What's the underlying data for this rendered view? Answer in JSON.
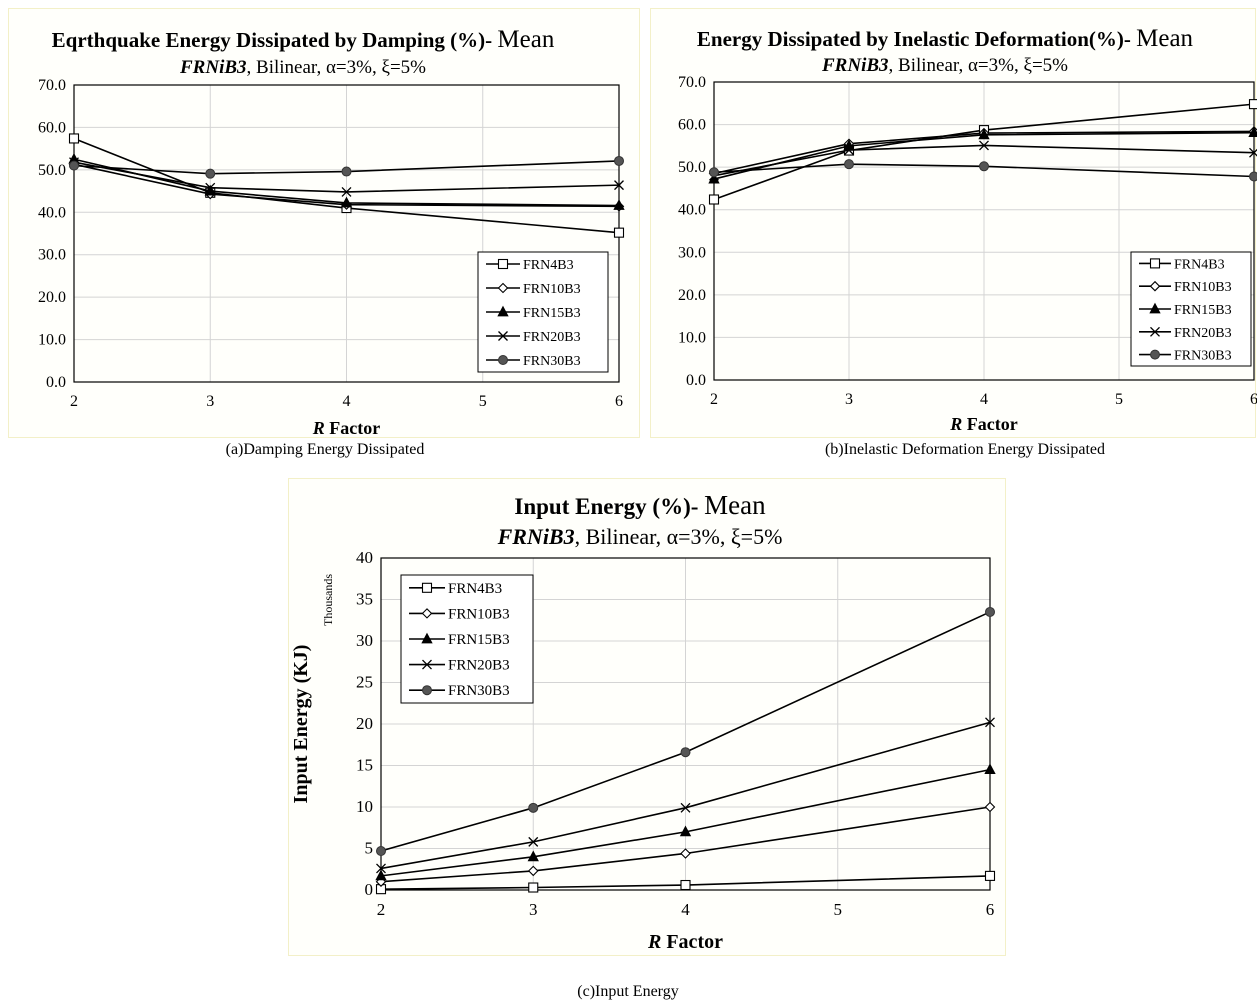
{
  "series_names": [
    "FRN4B3",
    "FRN10B3",
    "FRN15B3",
    "FRN20B3",
    "FRN30B3"
  ],
  "captions": {
    "a": "(a)Damping Energy Dissipated",
    "b": "(b)Inelastic Deformation Energy Dissipated",
    "c": "(c)Input Energy"
  },
  "chart_data": [
    {
      "type": "line",
      "title": "Eqrthquake Energy Dissipated by Damping (%)- Mean",
      "subtitle": "FRNiB3, Bilinear, α=3%, ξ=5%",
      "xlabel": "R Factor",
      "ylabel": "",
      "x_ticks": [
        "2",
        "3",
        "4",
        "5",
        "6"
      ],
      "y_ticks": [
        "0.0",
        "10.0",
        "20.0",
        "30.0",
        "40.0",
        "50.0",
        "60.0",
        "70.0"
      ],
      "xlim": [
        2,
        6
      ],
      "ylim": [
        0,
        70
      ],
      "x": [
        2,
        3,
        4,
        6
      ],
      "series": [
        {
          "name": "FRN4B3",
          "marker": "square",
          "values": [
            57.4,
            44.6,
            41.0,
            35.2
          ]
        },
        {
          "name": "FRN10B3",
          "marker": "diamond",
          "values": [
            51.3,
            44.3,
            41.8,
            41.4
          ]
        },
        {
          "name": "FRN15B3",
          "marker": "triangle",
          "values": [
            52.5,
            45.0,
            42.2,
            41.6
          ]
        },
        {
          "name": "FRN20B3",
          "marker": "x",
          "values": [
            51.8,
            45.8,
            44.8,
            46.4
          ]
        },
        {
          "name": "FRN30B3",
          "marker": "circle",
          "values": [
            51.0,
            49.1,
            49.6,
            52.1
          ]
        }
      ],
      "legend_position": "bottom-right",
      "grid": true
    },
    {
      "type": "line",
      "title": "Energy Dissipated by Inelastic Deformation(%)- Mean",
      "subtitle": "FRNiB3, Bilinear, α=3%, ξ=5%",
      "xlabel": "R Factor",
      "ylabel": "",
      "x_ticks": [
        "2",
        "3",
        "4",
        "5",
        "6"
      ],
      "y_ticks": [
        "0.0",
        "10.0",
        "20.0",
        "30.0",
        "40.0",
        "50.0",
        "60.0",
        "70.0"
      ],
      "xlim": [
        2,
        6
      ],
      "ylim": [
        0,
        70
      ],
      "x": [
        2,
        3,
        4,
        6
      ],
      "series": [
        {
          "name": "FRN4B3",
          "marker": "square",
          "values": [
            42.4,
            53.9,
            58.7,
            64.8
          ]
        },
        {
          "name": "FRN10B3",
          "marker": "diamond",
          "values": [
            48.5,
            55.5,
            58.0,
            58.4
          ]
        },
        {
          "name": "FRN15B3",
          "marker": "triangle",
          "values": [
            47.2,
            55.0,
            57.6,
            58.1
          ]
        },
        {
          "name": "FRN20B3",
          "marker": "x",
          "values": [
            48.0,
            54.0,
            55.1,
            53.4
          ]
        },
        {
          "name": "FRN30B3",
          "marker": "circle",
          "values": [
            48.8,
            50.7,
            50.2,
            47.8
          ]
        }
      ],
      "legend_position": "bottom-right",
      "grid": true
    },
    {
      "type": "line",
      "title": "Input Energy (%)- Mean",
      "subtitle": "FRNiB3, Bilinear, α=3%, ξ=5%",
      "xlabel": "R Factor",
      "ylabel": "Input Energy (KJ)",
      "y_unit_label": "Thousands",
      "x_ticks": [
        "2",
        "3",
        "4",
        "5",
        "6"
      ],
      "y_ticks": [
        "0",
        "5",
        "10",
        "15",
        "20",
        "25",
        "30",
        "35",
        "40"
      ],
      "xlim": [
        2,
        6
      ],
      "ylim": [
        0,
        40
      ],
      "x": [
        2,
        3,
        4,
        6
      ],
      "series": [
        {
          "name": "FRN4B3",
          "marker": "square",
          "values": [
            0.1,
            0.3,
            0.6,
            1.7
          ]
        },
        {
          "name": "FRN10B3",
          "marker": "diamond",
          "values": [
            1.0,
            2.3,
            4.4,
            10.0
          ]
        },
        {
          "name": "FRN15B3",
          "marker": "triangle",
          "values": [
            1.7,
            4.0,
            7.0,
            14.5
          ]
        },
        {
          "name": "FRN20B3",
          "marker": "x",
          "values": [
            2.6,
            5.8,
            9.9,
            20.2
          ]
        },
        {
          "name": "FRN30B3",
          "marker": "circle",
          "values": [
            4.7,
            9.9,
            16.6,
            33.5
          ]
        }
      ],
      "legend_position": "top-left",
      "grid": true
    }
  ]
}
